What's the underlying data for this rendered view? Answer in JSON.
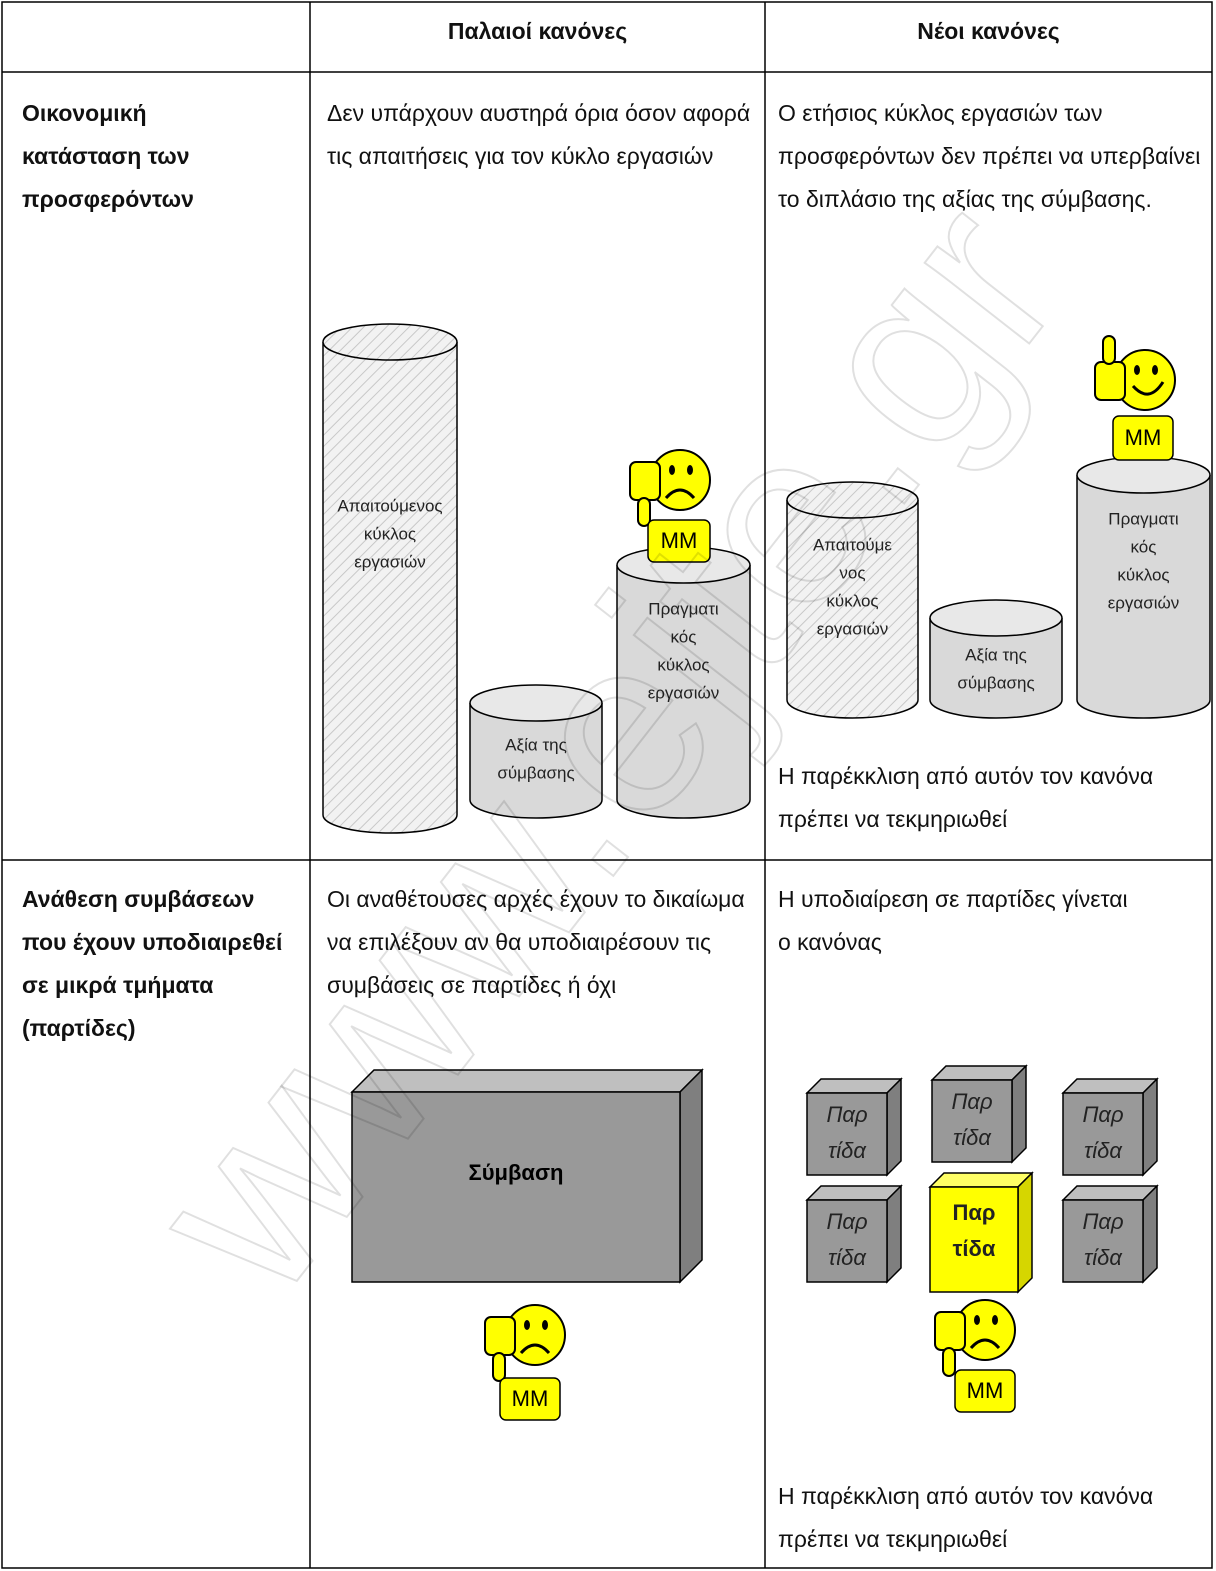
{
  "watermark": "www.ejte.gr",
  "header": {
    "old": "Παλαιοί κανόνες",
    "new": "Νέοι κανόνες"
  },
  "rows": [
    {
      "label": "Οικονομική κατάσταση των προσφερόντων",
      "old": "Δεν υπάρχουν αυστηρά όρια όσον αφορά τις απαιτήσεις για τον κύκλο εργασιών",
      "new": "Ο ετήσιος κύκλος εργασιών των προσφερόντων δεν πρέπει να υπερβαίνει το διπλάσιο της αξίας της σύμβασης.",
      "old_diagram": {
        "required": [
          "Απαιτούμενος",
          "κύκλος",
          "εργασιών"
        ],
        "contract_value": [
          "Αξία της",
          "σύμβασης"
        ],
        "actual": [
          "Πραγματι",
          "κός",
          "κύκλος",
          "εργασιών"
        ],
        "badge": "MM"
      },
      "new_diagram": {
        "required": [
          "Απαιτούμε",
          "νος",
          "κύκλος",
          "εργασιών"
        ],
        "contract_value": [
          "Αξία της",
          "σύμβασης"
        ],
        "actual": [
          "Πραγματι",
          "κός",
          "κύκλος",
          "εργασιών"
        ],
        "badge": "MM"
      },
      "new_note": "Η παρέκκλιση από αυτόν τον κανόνα πρέπει να τεκμηριωθεί"
    },
    {
      "label": "Ανάθεση συμβάσεων που έχουν υποδιαιρεθεί σε μικρά τμήματα (παρτίδες)",
      "old": "Οι αναθέτουσες αρχές έχουν το δικαίωμα να επιλέξουν αν θα υποδιαιρέσουν τις συμβάσεις σε παρτίδες ή όχι",
      "new": "Η υποδιαίρεση σε παρτίδες γίνεται ο κανόνας",
      "old_diagram": {
        "contract": "Σύμβαση",
        "badge": "MM"
      },
      "new_diagram": {
        "lot": [
          "Παρ",
          "τίδα"
        ],
        "badge": "MM"
      },
      "new_note": "Η παρέκκλιση από αυτόν τον κανόνα πρέπει να τεκμηριωθεί"
    }
  ]
}
